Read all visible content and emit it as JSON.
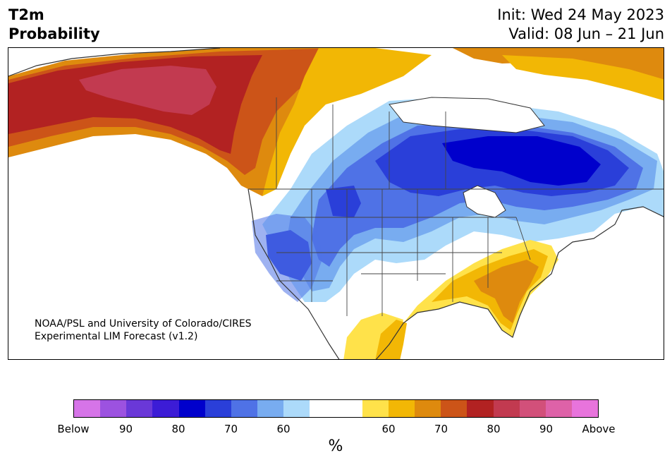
{
  "header": {
    "variable": "T2m",
    "quantity": "Probability",
    "init": "Init: Wed 24 May 2023",
    "valid": "Valid: 08 Jun – 21 Jun"
  },
  "credit": {
    "line1": "NOAA/PSL and University of Colorado/CIRES",
    "line2": "Experimental LIM Forecast (v1.2)"
  },
  "colorbar": {
    "colors": [
      "#d674e8",
      "#9c52e0",
      "#6a38d8",
      "#3c1cd6",
      "#0000cc",
      "#2a3fd9",
      "#4f72e6",
      "#78acf0",
      "#acdafa",
      "#ffffff",
      "#ffffff",
      "#ffe24a",
      "#f2b705",
      "#de8a0e",
      "#cc5418",
      "#b22222",
      "#c23a50",
      "#d2507a",
      "#de62a8",
      "#e874dc"
    ],
    "tick_labels": [
      "Below",
      "90",
      "80",
      "70",
      "60",
      "60",
      "70",
      "80",
      "90",
      "Above"
    ],
    "unit": "%"
  }
}
